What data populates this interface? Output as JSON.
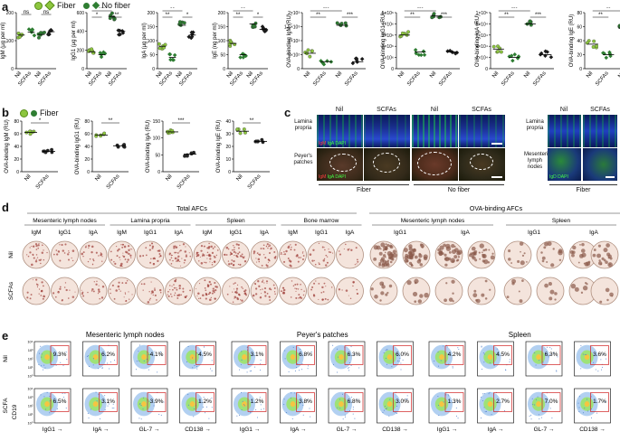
{
  "panels": {
    "a": "a",
    "b": "b",
    "c": "c",
    "d": "d",
    "e": "e"
  },
  "legend": {
    "fiber": "Fiber",
    "nofiber": "No fiber",
    "fiber_color": "#8dc63f",
    "nofiber_color": "#2e7d32"
  },
  "panel_a": [
    {
      "ylabel": "IgM (μg per ml)",
      "ticks": [
        "0",
        "100",
        "200"
      ],
      "groups": [
        "Nil",
        "SCFAs",
        "Nil",
        "SCFAs"
      ],
      "sig": [
        "ns",
        "ns"
      ],
      "means": [
        120,
        130,
        122,
        132
      ],
      "ymax": 200
    },
    {
      "ylabel": "IgG1 (μg per ml)",
      "ticks": [
        "0",
        "200",
        "400",
        "600"
      ],
      "groups": [
        "Nil",
        "SCFAs",
        "Nil",
        "SCFAs"
      ],
      "sig": [
        "***",
        "*",
        "**"
      ],
      "means": [
        180,
        150,
        560,
        400
      ],
      "ymax": 600
    },
    {
      "ylabel": "IgA (μg per ml)",
      "ticks": [
        "0",
        "50",
        "100",
        "150",
        "200"
      ],
      "groups": [
        "Nil",
        "SCFAs",
        "Nil",
        "SCFAs"
      ],
      "sig": [
        "**",
        "**",
        "*"
      ],
      "means": [
        80,
        40,
        155,
        120
      ],
      "ymax": 200
    },
    {
      "ylabel": "IgE (ng per ml)",
      "ticks": [
        "0",
        "50",
        "100",
        "150",
        "200"
      ],
      "groups": [
        "Nil",
        "SCFAs",
        "Nil",
        "SCFAs"
      ],
      "sig": [
        "**",
        "**",
        "*"
      ],
      "means": [
        90,
        50,
        160,
        140
      ],
      "ymax": 200
    },
    {
      "ylabel": "OVA-binding IgM (RU)",
      "ticks": [
        "0",
        "5×10²",
        "1×10³",
        "1.5×10³",
        "2×10³"
      ],
      "groups": [
        "Nil",
        "SCFAs",
        "Nil",
        "SCFAs"
      ],
      "sig": [
        "***",
        "**",
        "***"
      ],
      "means": [
        550,
        250,
        1550,
        250
      ],
      "ymax": 2000
    },
    {
      "ylabel": "OVA-binding IgG1 (RU)",
      "ticks": [
        "0",
        "1×10⁶",
        "2×10⁶",
        "3×10⁶",
        "4×10⁶",
        "5×10⁶"
      ],
      "groups": [
        "Nil",
        "SCFAs",
        "Nil",
        "SCFAs"
      ],
      "sig": [
        "***",
        "**",
        "***"
      ],
      "means": [
        3000000,
        1500000,
        4700000,
        1500000
      ],
      "ymax": 5000000
    },
    {
      "ylabel": "OVA-binding IgA (RU)",
      "ticks": [
        "0",
        "2×10⁴",
        "4×10⁴",
        "6×10⁴",
        "8×10⁴",
        "1×10⁵"
      ],
      "groups": [
        "Nil",
        "SCFAs",
        "Nil",
        "SCFAs"
      ],
      "sig": [
        "***",
        "**",
        "***"
      ],
      "means": [
        35000,
        20000,
        80000,
        25000
      ],
      "ymax": 100000
    },
    {
      "ylabel": "OVA-binding IgE (RU)",
      "ticks": [
        "0",
        "20",
        "40",
        "60",
        "80"
      ],
      "groups": [
        "Nil",
        "SCFAs",
        "Nil",
        "SCFAs"
      ],
      "sig": [
        "**",
        "**",
        "**"
      ],
      "means": [
        35,
        20,
        58,
        30
      ],
      "ymax": 80
    }
  ],
  "panel_b": {
    "legend": "Fiber",
    "charts": [
      {
        "ylabel": "OVA-binding IgM (RU)",
        "ticks": [
          "0",
          "20",
          "40",
          "60",
          "80"
        ],
        "groups": [
          "Nil",
          "SCFAs"
        ],
        "sig": "*",
        "means": [
          62,
          32
        ],
        "ymax": 80
      },
      {
        "ylabel": "OVA-binding IgG1 (RU)",
        "ticks": [
          "0",
          "20",
          "40",
          "60",
          "80"
        ],
        "groups": [
          "Nil",
          "SCFAs"
        ],
        "sig": "**",
        "means": [
          58,
          41
        ],
        "ymax": 80
      },
      {
        "ylabel": "OVA-binding IgA (RU)",
        "ticks": [
          "0",
          "50",
          "100",
          "150"
        ],
        "groups": [
          "Nil",
          "SCFAs"
        ],
        "sig": "***",
        "means": [
          118,
          52
        ],
        "ymax": 150
      },
      {
        "ylabel": "OVA-binding IgE (RU)",
        "ticks": [
          "0",
          "10",
          "20",
          "30",
          "40"
        ],
        "groups": [
          "Nil",
          "SCFAs"
        ],
        "sig": "**",
        "means": [
          32,
          24
        ],
        "ymax": 40
      }
    ]
  },
  "panel_c": {
    "col_nil": "Nil",
    "col_scfas": "SCFAs",
    "row_lp": "Lamina propria",
    "row_pp": "Peyer's patches",
    "row_mln": "Mesenteric lymph nodes",
    "stain_lp": "IgA DAPI",
    "stain_lp_prefix": "IgM",
    "stain_mln": "IgD DAPI",
    "group_fiber": "Fiber",
    "group_nofiber": "No fiber",
    "group_fiber2": "Fiber"
  },
  "panel_d": {
    "title_total": "Total AFCs",
    "title_ova": "OVA-binding AFCs",
    "tissues_total": [
      "Mesenteric lymph nodes",
      "Lamina propria",
      "Spleen",
      "Bone marrow"
    ],
    "tissues_ova": [
      "Mesenteric lymph nodes",
      "Spleen"
    ],
    "isotypes_total": [
      "IgM",
      "IgG1",
      "IgA",
      "IgM",
      "IgG1",
      "IgA",
      "IgM",
      "IgG1",
      "IgA",
      "IgM",
      "IgG1",
      "IgA"
    ],
    "isotypes_ova": [
      "IgG1",
      "IgA",
      "IgG1",
      "IgA"
    ],
    "rows": [
      "Nil",
      "SCFAs"
    ]
  },
  "panel_e": {
    "tissues": [
      "Mesenteric lymph nodes",
      "Peyer's patches",
      "Spleen"
    ],
    "rows": [
      "Nil",
      "SCFA"
    ],
    "ylabel": "CD19",
    "xlabels": [
      "IgG1",
      "IgA",
      "GL-7",
      "CD138",
      "IgG1",
      "IgA",
      "GL-7",
      "CD138",
      "IgG1",
      "IgA",
      "GL-7",
      "CD138"
    ],
    "nil_pct": [
      "9.3%",
      "6.2%",
      "4.1%",
      "4.5%",
      "3.1%",
      "6.8%",
      "6.3%",
      "6.0%",
      "4.2%",
      "4.5%",
      "6.3%",
      "3.6%"
    ],
    "scfa_pct": [
      "6.5%",
      "3.1%",
      "3.9%",
      "1.2%",
      "1.2%",
      "3.8%",
      "6.8%",
      "3.0%",
      "1.3%",
      "2.7%",
      "7.0%",
      "1.7%"
    ],
    "yticks": [
      "10⁰",
      "10¹",
      "10²",
      "10³",
      "10⁴"
    ]
  }
}
